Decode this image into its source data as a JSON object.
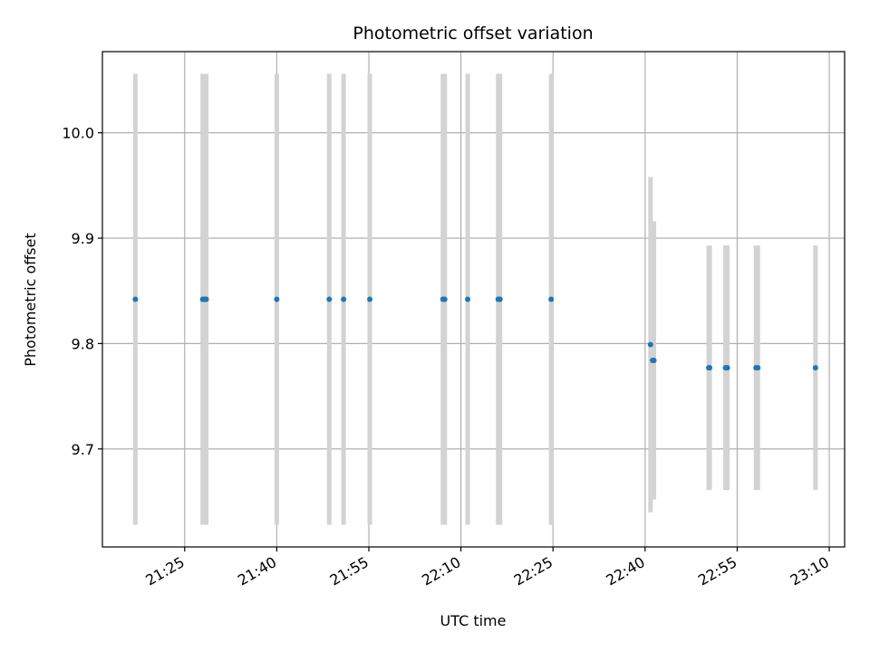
{
  "chart_data": {
    "type": "scatter",
    "title": "Photometric offset variation",
    "xlabel": "UTC time",
    "ylabel": "Photometric offset",
    "x_tick_labels": [
      "21:25",
      "21:40",
      "21:55",
      "22:10",
      "22:25",
      "22:40",
      "22:55",
      "23:10"
    ],
    "x_tick_minutes": [
      1285,
      1300,
      1315,
      1330,
      1345,
      1360,
      1375,
      1390
    ],
    "xlim_minutes": [
      1271.6,
      1392.5
    ],
    "y_tick_labels": [
      "9.7",
      "9.8",
      "9.9",
      "10.0"
    ],
    "y_tick_values": [
      9.7,
      9.8,
      9.9,
      10.0
    ],
    "ylim": [
      9.607,
      10.077
    ],
    "grid": true,
    "marker_color": "#1f77b4",
    "errorbar_color": "#d3d3d3",
    "points": [
      {
        "t": "21:16:58",
        "y": 9.842,
        "yerr": 0.214
      },
      {
        "t": "21:27:56",
        "y": 9.842,
        "yerr": 0.214
      },
      {
        "t": "21:28:07",
        "y": 9.842,
        "yerr": 0.214
      },
      {
        "t": "21:28:20",
        "y": 9.842,
        "yerr": 0.214
      },
      {
        "t": "21:28:31",
        "y": 9.842,
        "yerr": 0.214
      },
      {
        "t": "21:40:00",
        "y": 9.842,
        "yerr": 0.214
      },
      {
        "t": "21:48:33",
        "y": 9.842,
        "yerr": 0.214
      },
      {
        "t": "21:50:53",
        "y": 9.842,
        "yerr": 0.214
      },
      {
        "t": "21:55:09",
        "y": 9.842,
        "yerr": 0.214
      },
      {
        "t": "22:07:04",
        "y": 9.842,
        "yerr": 0.214
      },
      {
        "t": "22:07:13",
        "y": 9.842,
        "yerr": 0.214
      },
      {
        "t": "22:07:22",
        "y": 9.842,
        "yerr": 0.214
      },
      {
        "t": "22:11:06",
        "y": 9.842,
        "yerr": 0.214
      },
      {
        "t": "22:16:04",
        "y": 9.842,
        "yerr": 0.214
      },
      {
        "t": "22:16:13",
        "y": 9.842,
        "yerr": 0.214
      },
      {
        "t": "22:16:22",
        "y": 9.842,
        "yerr": 0.214
      },
      {
        "t": "22:24:42",
        "y": 9.842,
        "yerr": 0.214
      },
      {
        "t": "22:40:53",
        "y": 9.799,
        "yerr": 0.159
      },
      {
        "t": "22:41:13",
        "y": 9.784,
        "yerr": 0.132
      },
      {
        "t": "22:41:26",
        "y": 9.784,
        "yerr": 0.132
      },
      {
        "t": "22:50:22",
        "y": 9.777,
        "yerr": 0.116
      },
      {
        "t": "22:50:31",
        "y": 9.777,
        "yerr": 0.116
      },
      {
        "t": "22:53:06",
        "y": 9.777,
        "yerr": 0.116
      },
      {
        "t": "22:53:15",
        "y": 9.777,
        "yerr": 0.116
      },
      {
        "t": "22:53:24",
        "y": 9.777,
        "yerr": 0.116
      },
      {
        "t": "22:58:04",
        "y": 9.777,
        "yerr": 0.116
      },
      {
        "t": "22:58:13",
        "y": 9.777,
        "yerr": 0.116
      },
      {
        "t": "22:58:22",
        "y": 9.777,
        "yerr": 0.116
      },
      {
        "t": "23:07:45",
        "y": 9.777,
        "yerr": 0.116
      }
    ]
  }
}
